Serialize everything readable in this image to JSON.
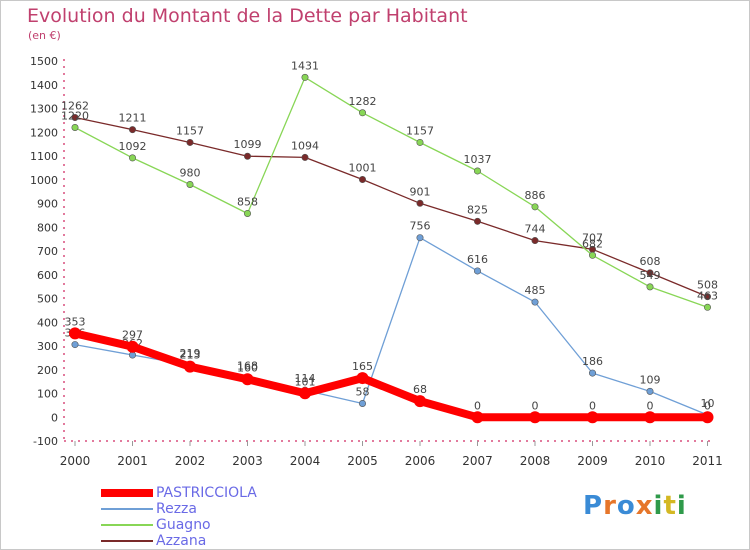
{
  "chart_data": {
    "type": "line",
    "title": "Evolution du Montant de la Dette par Habitant",
    "subtitle": "(en €)",
    "categories": [
      "2000",
      "2001",
      "2002",
      "2003",
      "2004",
      "2005",
      "2006",
      "2007",
      "2008",
      "2009",
      "2010",
      "2011"
    ],
    "ylim": [
      -100,
      1500
    ],
    "yticks": [
      -100,
      0,
      100,
      200,
      300,
      400,
      500,
      600,
      700,
      800,
      900,
      1000,
      1100,
      1200,
      1300,
      1400,
      1500
    ],
    "grid": false,
    "legend_position": "bottom-left",
    "series": [
      {
        "name": "PASTRICCIOLA",
        "color": "#ff0000",
        "thick": true,
        "values": [
          353,
          297,
          213,
          160,
          101,
          165,
          68,
          0,
          0,
          0,
          0,
          0
        ]
      },
      {
        "name": "Rezza",
        "color": "#6f9fd6",
        "thick": false,
        "values": [
          306,
          262,
          219,
          168,
          114,
          58,
          756,
          616,
          485,
          186,
          109,
          10
        ]
      },
      {
        "name": "Guagno",
        "color": "#88d656",
        "thick": false,
        "values": [
          1220,
          1092,
          980,
          858,
          null,
          1282,
          1157,
          1037,
          886,
          682,
          549,
          463
        ],
        "extra_points": [
          {
            "x": "2004",
            "y": 1431
          }
        ]
      },
      {
        "name": "Azzana",
        "color": "#7a2a2a",
        "thick": false,
        "values": [
          1262,
          1211,
          1157,
          1099,
          1094,
          1001,
          901,
          825,
          744,
          707,
          608,
          508
        ]
      }
    ],
    "axis_color": "#d94f7d",
    "tick_label_color": "#333333"
  },
  "logo": {
    "letters": [
      "P",
      "r",
      "o",
      "x",
      "i",
      "t",
      "i"
    ]
  }
}
